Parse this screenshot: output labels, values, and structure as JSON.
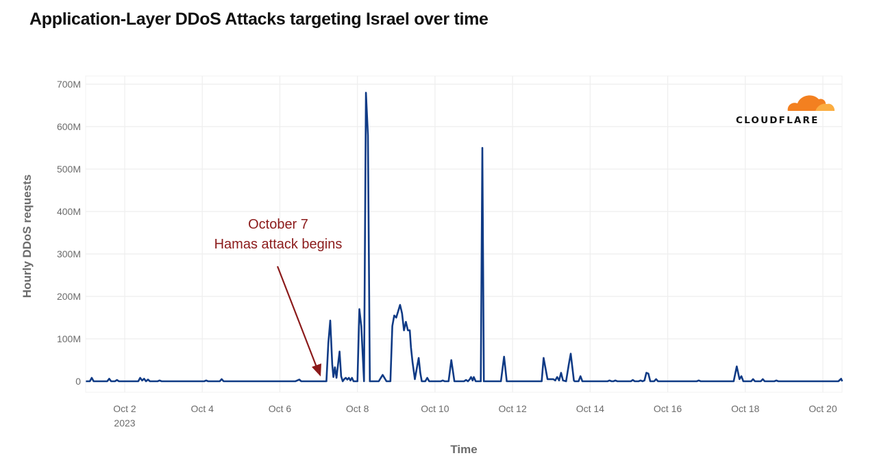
{
  "title": "Application-Layer DDoS Attacks targeting Israel over time",
  "colors": {
    "line": "#0f3a85",
    "annotation": "#8b1a1a",
    "grid": "#eeeeee",
    "logo_orange": "#f38020",
    "logo_light": "#fbad41"
  },
  "logo": {
    "text": "CLOUDFLARE",
    "icon": "cloud-icon"
  },
  "annotation": {
    "line1": "October 7",
    "line2": "Hamas attack begins"
  },
  "chart_data": {
    "type": "line",
    "title": "Application-Layer DDoS Attacks targeting Israel over time",
    "xlabel": "Time",
    "ylabel": "Hourly DDoS requests",
    "ylim": [
      0,
      700
    ],
    "y_unit": "M",
    "yticks": [
      "0",
      "100M",
      "200M",
      "300M",
      "400M",
      "500M",
      "600M",
      "700M"
    ],
    "xticks": [
      {
        "label": "Oct 2",
        "sub": "2023",
        "day": 2
      },
      {
        "label": "Oct 4",
        "day": 4
      },
      {
        "label": "Oct 6",
        "day": 6
      },
      {
        "label": "Oct 8",
        "day": 8
      },
      {
        "label": "Oct 10",
        "day": 10
      },
      {
        "label": "Oct 12",
        "day": 12
      },
      {
        "label": "Oct 14",
        "day": 14
      },
      {
        "label": "Oct 16",
        "day": 16
      },
      {
        "label": "Oct 18",
        "day": 18
      },
      {
        "label": "Oct 20",
        "day": 20
      }
    ],
    "x_range_days": [
      1.0,
      20.5
    ],
    "grid": true,
    "series": [
      {
        "name": "Hourly DDoS requests (M)",
        "points": [
          [
            1.0,
            0
          ],
          [
            1.1,
            0
          ],
          [
            1.15,
            8
          ],
          [
            1.2,
            0
          ],
          [
            1.55,
            0
          ],
          [
            1.6,
            6
          ],
          [
            1.65,
            0
          ],
          [
            1.75,
            0
          ],
          [
            1.8,
            3
          ],
          [
            1.85,
            0
          ],
          [
            2.35,
            0
          ],
          [
            2.4,
            8
          ],
          [
            2.45,
            2
          ],
          [
            2.5,
            6
          ],
          [
            2.55,
            0
          ],
          [
            2.6,
            4
          ],
          [
            2.65,
            0
          ],
          [
            2.85,
            0
          ],
          [
            2.9,
            2
          ],
          [
            2.95,
            0
          ],
          [
            4.05,
            0
          ],
          [
            4.1,
            2
          ],
          [
            4.15,
            0
          ],
          [
            4.45,
            0
          ],
          [
            4.5,
            5
          ],
          [
            4.55,
            0
          ],
          [
            6.4,
            0
          ],
          [
            6.45,
            2
          ],
          [
            6.5,
            4
          ],
          [
            6.55,
            0
          ],
          [
            7.2,
            0
          ],
          [
            7.25,
            90
          ],
          [
            7.3,
            143
          ],
          [
            7.35,
            40
          ],
          [
            7.38,
            10
          ],
          [
            7.42,
            33
          ],
          [
            7.46,
            8
          ],
          [
            7.5,
            40
          ],
          [
            7.54,
            70
          ],
          [
            7.58,
            12
          ],
          [
            7.62,
            0
          ],
          [
            7.66,
            5
          ],
          [
            7.7,
            8
          ],
          [
            7.74,
            4
          ],
          [
            7.78,
            8
          ],
          [
            7.82,
            2
          ],
          [
            7.86,
            8
          ],
          [
            7.9,
            0
          ],
          [
            8.0,
            0
          ],
          [
            8.05,
            170
          ],
          [
            8.1,
            130
          ],
          [
            8.17,
            0
          ],
          [
            8.22,
            680
          ],
          [
            8.27,
            580
          ],
          [
            8.32,
            0
          ],
          [
            8.55,
            0
          ],
          [
            8.65,
            15
          ],
          [
            8.75,
            0
          ],
          [
            8.85,
            0
          ],
          [
            8.9,
            130
          ],
          [
            8.95,
            155
          ],
          [
            9.0,
            150
          ],
          [
            9.05,
            165
          ],
          [
            9.1,
            180
          ],
          [
            9.15,
            160
          ],
          [
            9.2,
            120
          ],
          [
            9.25,
            140
          ],
          [
            9.3,
            120
          ],
          [
            9.35,
            120
          ],
          [
            9.38,
            80
          ],
          [
            9.42,
            45
          ],
          [
            9.48,
            5
          ],
          [
            9.52,
            25
          ],
          [
            9.58,
            55
          ],
          [
            9.62,
            20
          ],
          [
            9.66,
            0
          ],
          [
            9.75,
            0
          ],
          [
            9.8,
            8
          ],
          [
            9.85,
            0
          ],
          [
            10.15,
            0
          ],
          [
            10.2,
            2
          ],
          [
            10.25,
            0
          ],
          [
            10.35,
            0
          ],
          [
            10.42,
            50
          ],
          [
            10.5,
            0
          ],
          [
            10.75,
            0
          ],
          [
            10.8,
            3
          ],
          [
            10.85,
            0
          ],
          [
            10.9,
            5
          ],
          [
            10.93,
            10
          ],
          [
            10.97,
            2
          ],
          [
            11.0,
            10
          ],
          [
            11.05,
            0
          ],
          [
            11.18,
            0
          ],
          [
            11.22,
            550
          ],
          [
            11.26,
            0
          ],
          [
            11.7,
            0
          ],
          [
            11.78,
            58
          ],
          [
            11.85,
            0
          ],
          [
            12.75,
            0
          ],
          [
            12.8,
            55
          ],
          [
            12.9,
            5
          ],
          [
            13.05,
            5
          ],
          [
            13.1,
            2
          ],
          [
            13.15,
            10
          ],
          [
            13.2,
            2
          ],
          [
            13.25,
            20
          ],
          [
            13.3,
            2
          ],
          [
            13.38,
            0
          ],
          [
            13.45,
            40
          ],
          [
            13.5,
            65
          ],
          [
            13.58,
            2
          ],
          [
            13.6,
            0
          ],
          [
            13.7,
            0
          ],
          [
            13.75,
            12
          ],
          [
            13.8,
            0
          ],
          [
            14.45,
            0
          ],
          [
            14.5,
            2
          ],
          [
            14.55,
            0
          ],
          [
            14.6,
            0
          ],
          [
            14.65,
            2
          ],
          [
            14.7,
            0
          ],
          [
            15.05,
            0
          ],
          [
            15.1,
            3
          ],
          [
            15.15,
            0
          ],
          [
            15.25,
            0
          ],
          [
            15.3,
            2
          ],
          [
            15.35,
            0
          ],
          [
            15.4,
            2
          ],
          [
            15.45,
            20
          ],
          [
            15.5,
            18
          ],
          [
            15.55,
            0
          ],
          [
            15.65,
            0
          ],
          [
            15.7,
            5
          ],
          [
            15.75,
            0
          ],
          [
            16.75,
            0
          ],
          [
            16.8,
            2
          ],
          [
            16.85,
            0
          ],
          [
            17.7,
            0
          ],
          [
            17.78,
            35
          ],
          [
            17.85,
            5
          ],
          [
            17.9,
            12
          ],
          [
            17.95,
            0
          ],
          [
            18.15,
            0
          ],
          [
            18.2,
            5
          ],
          [
            18.25,
            0
          ],
          [
            18.4,
            0
          ],
          [
            18.45,
            5
          ],
          [
            18.5,
            0
          ],
          [
            18.75,
            0
          ],
          [
            18.8,
            2
          ],
          [
            18.85,
            0
          ],
          [
            20.4,
            0
          ],
          [
            20.47,
            6
          ],
          [
            20.5,
            0
          ]
        ]
      }
    ],
    "annotations": [
      {
        "text": "October 7\nHamas attack begins",
        "arrow_to_day": 7.1,
        "arrow_to_value": 5
      }
    ]
  }
}
